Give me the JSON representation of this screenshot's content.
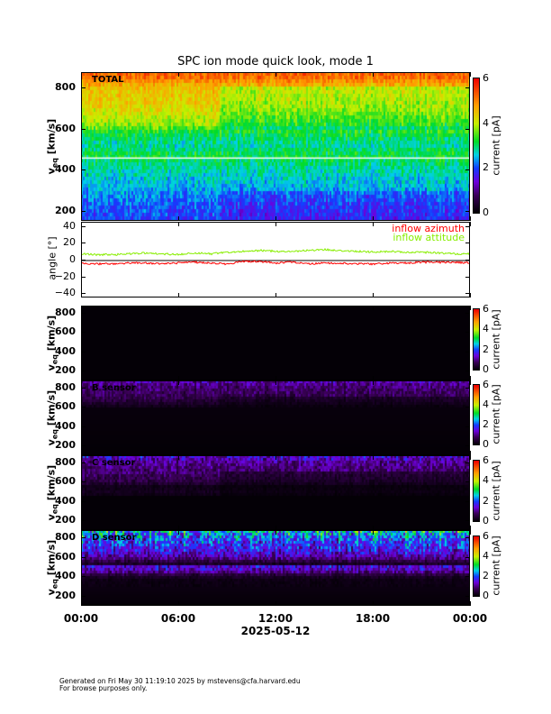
{
  "title": "SPC ion mode quick look, mode 1",
  "footer": {
    "line1": "Generated on Fri May 30 11:19:10 2025 by mstevens@cfa.harvard.edu",
    "line2": "For browse purposes only."
  },
  "chart_data": {
    "type": "heatmap",
    "x_axis": {
      "tick_labels": [
        "00:00",
        "06:00",
        "12:00",
        "18:00",
        "00:00"
      ],
      "tick_hours": [
        0,
        6,
        12,
        18,
        24
      ],
      "date_label": "2025-05-12",
      "range_hours": [
        0,
        24
      ]
    },
    "colormap": "rainbow (black-purple-blue-cyan-green-yellow-orange-red)",
    "colorbar": {
      "label": "current [pA]",
      "range": [
        0,
        6
      ],
      "tick_labels": [
        "0",
        "2",
        "4",
        "6"
      ]
    },
    "panels": [
      {
        "id": "total",
        "label": "TOTAL",
        "ylabel": "v",
        "ylabel_sub": "eq",
        "ylabel_unit": "[km/s]",
        "ylim": [
          152,
          874
        ],
        "yticks": [
          "200",
          "400",
          "600",
          "800"
        ],
        "profile_velocity": [
          180,
          250,
          320,
          400,
          440,
          470,
          520,
          580,
          620,
          700,
          800,
          850
        ],
        "profile_current": [
          2.0,
          2.2,
          2.5,
          2.8,
          3.0,
          3.2,
          2.8,
          3.2,
          3.8,
          4.3,
          4.5,
          5.2
        ],
        "marker_line_velocity": 460
      },
      {
        "id": "a",
        "label": "",
        "ylabel": "v",
        "ylabel_sub": "eq",
        "ylabel_unit": "[km/s]",
        "ylim": [
          100,
          875
        ],
        "yticks": [
          "200",
          "400",
          "600",
          "800"
        ],
        "profile_velocity": [
          100,
          875
        ],
        "profile_current": [
          0.05,
          0.05
        ]
      },
      {
        "id": "b",
        "label": "B sensor",
        "ylabel": "v",
        "ylabel_sub": "eq",
        "ylabel_unit": "[km/s]",
        "ylim": [
          100,
          875
        ],
        "yticks": [
          "200",
          "400",
          "600",
          "800"
        ],
        "profile_velocity": [
          100,
          580,
          620,
          700,
          800,
          860
        ],
        "profile_current": [
          0.05,
          0.1,
          0.3,
          0.7,
          0.9,
          1.2
        ]
      },
      {
        "id": "c",
        "label": "C sensor",
        "ylabel": "v",
        "ylabel_sub": "eq",
        "ylabel_unit": "[km/s]",
        "ylim": [
          100,
          875
        ],
        "yticks": [
          "200",
          "400",
          "600",
          "800"
        ],
        "profile_velocity": [
          100,
          450,
          480,
          550,
          600,
          700,
          800,
          860
        ],
        "profile_current": [
          0.05,
          0.05,
          0.3,
          0.2,
          0.6,
          0.9,
          1.1,
          1.5
        ]
      },
      {
        "id": "d",
        "label": "D sensor",
        "ylabel": "v",
        "ylabel_sub": "eq",
        "ylabel_unit": "[km/s]",
        "ylim": [
          100,
          875
        ],
        "yticks": [
          "200",
          "400",
          "600",
          "800"
        ],
        "profile_velocity": [
          100,
          380,
          420,
          460,
          500,
          520,
          540,
          600,
          700,
          800,
          860
        ],
        "profile_current": [
          0.05,
          0.2,
          0.6,
          1.3,
          1.6,
          0.3,
          0.4,
          1.2,
          1.7,
          2.0,
          2.6
        ]
      }
    ],
    "angle_panel": {
      "type": "line",
      "ylabel": "angle [°]",
      "ylim": [
        -45,
        45
      ],
      "yticks": [
        "40",
        "20",
        "0",
        "−20",
        "−40"
      ],
      "zero_line": true,
      "series": [
        {
          "name": "inflow azimuth",
          "color": "#ff0000",
          "hours": [
            0,
            1,
            2,
            3,
            4,
            5,
            6,
            7,
            8,
            9,
            10,
            11,
            12,
            13,
            14,
            15,
            16,
            17,
            18,
            19,
            20,
            21,
            22,
            23,
            24
          ],
          "values": [
            -3,
            -4,
            -4,
            -3,
            -3,
            -4,
            -3,
            -2,
            -3,
            -4,
            -1,
            -1,
            -3,
            -2,
            -4,
            -3,
            -3,
            -4,
            -4,
            -3,
            -3,
            -2,
            -2,
            -2,
            -3
          ]
        },
        {
          "name": "inflow attitude",
          "color": "#88ee00",
          "hours": [
            0,
            1,
            2,
            3,
            4,
            5,
            6,
            7,
            8,
            9,
            10,
            11,
            12,
            13,
            14,
            15,
            16,
            17,
            18,
            19,
            20,
            21,
            22,
            23,
            24
          ],
          "values": [
            8,
            7,
            7,
            8,
            9,
            8,
            7,
            9,
            8,
            10,
            11,
            12,
            11,
            11,
            12,
            13,
            12,
            11,
            10,
            11,
            10,
            10,
            9,
            8,
            8
          ]
        }
      ]
    }
  }
}
